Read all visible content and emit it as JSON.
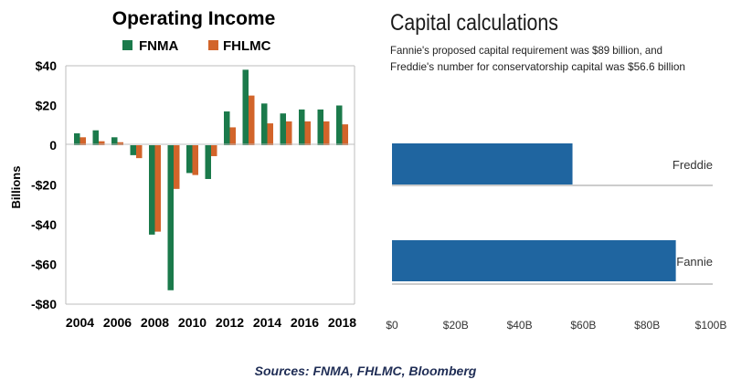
{
  "chart_data": [
    {
      "type": "bar",
      "title": "Operating Income",
      "ylabel": "Billions",
      "xlabel": "",
      "ylim": [
        -80,
        40
      ],
      "yticks": [
        40,
        20,
        0,
        -20,
        -40,
        -60,
        -80
      ],
      "ytick_labels": [
        "$40",
        "$20",
        "0",
        "-$20",
        "-$40",
        "-$60",
        "-$80"
      ],
      "categories": [
        "2004",
        "2005",
        "2006",
        "2007",
        "2008",
        "2009",
        "2010",
        "2011",
        "2012",
        "2013",
        "2014",
        "2015",
        "2016",
        "2017",
        "2018"
      ],
      "xtick_labels": [
        "2004",
        "2006",
        "2008",
        "2010",
        "2012",
        "2014",
        "2016",
        "2018"
      ],
      "legend_position": "top",
      "grid": false,
      "series": [
        {
          "name": "FNMA",
          "color": "#1b7a4b",
          "values": [
            6,
            7.5,
            4,
            -5,
            -45,
            -73,
            -14,
            -17,
            17,
            38,
            21,
            16,
            18,
            18,
            20
          ]
        },
        {
          "name": "FHLMC",
          "color": "#d2642a",
          "values": [
            4,
            2,
            1.5,
            -6.5,
            -43.5,
            -22,
            -15,
            -5.5,
            9,
            25,
            11,
            12,
            12,
            12,
            10.5
          ]
        }
      ]
    },
    {
      "type": "bar",
      "orientation": "horizontal",
      "title": "Capital calculations",
      "subtitle_lines": [
        "Fannie's proposed capital requirement was $89 billion, and",
        "Freddie's number for conservatorship capital was $56.6 billion"
      ],
      "categories": [
        "Freddie",
        "Fannie"
      ],
      "values": [
        56.6,
        89
      ],
      "xlim": [
        0,
        100
      ],
      "xtick_values": [
        0,
        20,
        40,
        60,
        80,
        100
      ],
      "xtick_labels": [
        "$0",
        "$20B",
        "$40B",
        "$60B",
        "$80B",
        "$100B"
      ],
      "bar_color": "#1f65a0",
      "grid": false
    }
  ],
  "footer": {
    "sources": "Sources: FNMA, FHLMC, Bloomberg"
  }
}
